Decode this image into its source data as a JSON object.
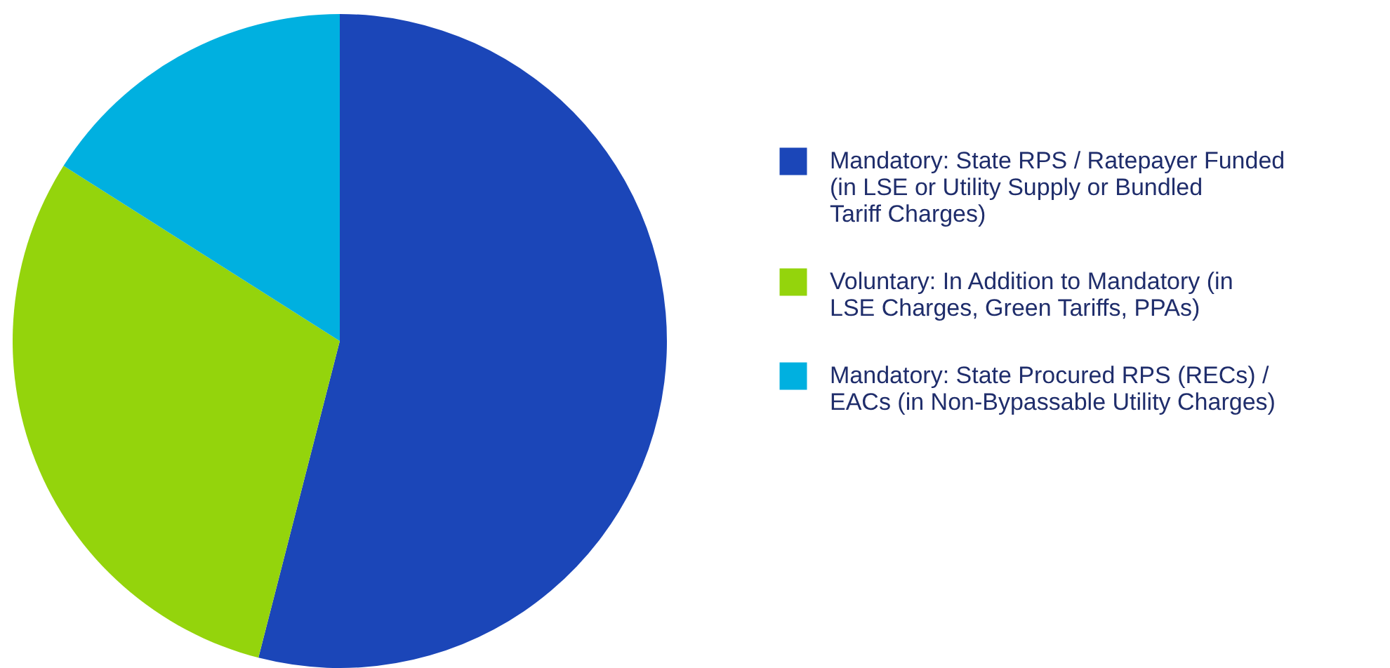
{
  "chart_data": {
    "type": "pie",
    "categories": [
      "Mandatory: State RPS / Ratepayer Funded (in LSE or Utility Supply or Bundled Tariff Charges)",
      "Voluntary: In Addition to Mandatory (in LSE Charges, Green Tariffs, PPAs)",
      "Mandatory: State Procured RPS (RECs) / EACs (in Non-Bypassable Utility Charges)"
    ],
    "values": [
      54,
      30,
      16
    ],
    "colors": [
      "#1b46b8",
      "#94d40c",
      "#00b0e0"
    ],
    "legend": "right"
  }
}
